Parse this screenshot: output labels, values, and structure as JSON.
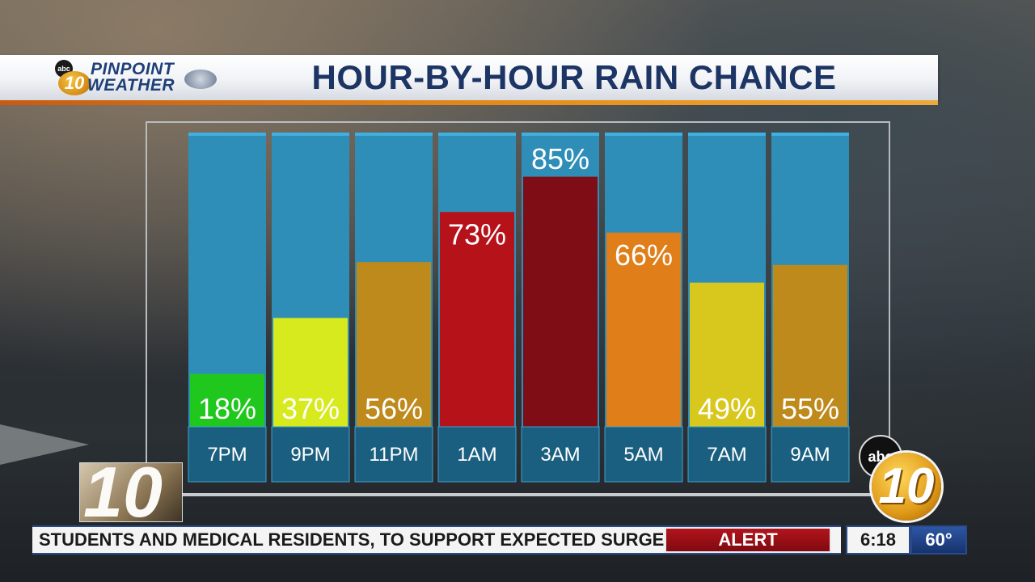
{
  "branding": {
    "logo_line1": "PINPOINT",
    "logo_line2": "WEATHER",
    "abc": "abc",
    "ten": "10"
  },
  "header": {
    "title": "HOUR-BY-HOUR RAIN CHANCE"
  },
  "chart_data": {
    "type": "bar",
    "title": "HOUR-BY-HOUR RAIN CHANCE",
    "xlabel": "",
    "ylabel": "",
    "ylim": [
      0,
      100
    ],
    "categories": [
      "7PM",
      "9PM",
      "11PM",
      "1AM",
      "3AM",
      "5AM",
      "7AM",
      "9AM"
    ],
    "values": [
      18,
      37,
      56,
      73,
      85,
      66,
      49,
      55
    ],
    "value_labels": [
      "18%",
      "37%",
      "56%",
      "73%",
      "85%",
      "66%",
      "49%",
      "55%"
    ],
    "bar_colors": [
      "#20c81e",
      "#d6ea1e",
      "#bf8a1c",
      "#b5121a",
      "#7e0d16",
      "#e07e1a",
      "#d8c81e",
      "#bf8a1c"
    ],
    "background_color": "#2f8eb8",
    "label_band_color": "#1b5f80",
    "grid": false,
    "legend": "none"
  },
  "ticker": {
    "text": "STUDENTS AND MEDICAL RESIDENTS, TO SUPPORT EXPECTED SURGE OF CASES",
    "alert_label": "ALERT",
    "time": "6:18",
    "temperature": "60°"
  }
}
